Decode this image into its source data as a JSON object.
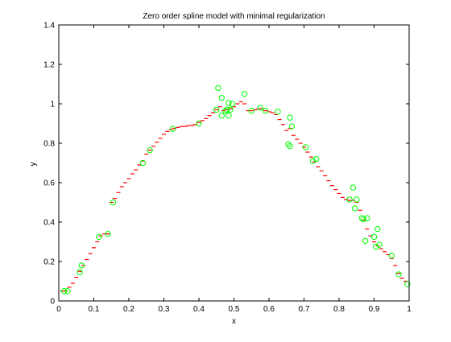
{
  "chart_data": {
    "type": "scatter",
    "title": "Zero order spline model with minimal regularization",
    "xlabel": "x",
    "ylabel": "y",
    "xlim": [
      0,
      1
    ],
    "ylim": [
      0,
      1.4
    ],
    "xticks": [
      "0",
      "0.1",
      "0.2",
      "0.3",
      "0.4",
      "0.5",
      "0.6",
      "0.7",
      "0.8",
      "0.9",
      "1"
    ],
    "yticks": [
      "0",
      "0.2",
      "0.4",
      "0.6",
      "0.8",
      "1",
      "1.2",
      "1.4"
    ],
    "grid": false,
    "legend": "none",
    "series": [
      {
        "kind": "points",
        "marker": "open-circle",
        "color": "#00ff00",
        "points": [
          [
            0.015,
            0.05
          ],
          [
            0.025,
            0.05
          ],
          [
            0.06,
            0.145
          ],
          [
            0.065,
            0.18
          ],
          [
            0.115,
            0.325
          ],
          [
            0.14,
            0.34
          ],
          [
            0.155,
            0.5
          ],
          [
            0.24,
            0.7
          ],
          [
            0.26,
            0.765
          ],
          [
            0.325,
            0.873
          ],
          [
            0.4,
            0.9
          ],
          [
            0.45,
            0.97
          ],
          [
            0.455,
            1.08
          ],
          [
            0.465,
            1.03
          ],
          [
            0.465,
            0.94
          ],
          [
            0.475,
            0.965
          ],
          [
            0.48,
            0.97
          ],
          [
            0.485,
            0.94
          ],
          [
            0.485,
            1.005
          ],
          [
            0.49,
            0.97
          ],
          [
            0.495,
            1.0
          ],
          [
            0.53,
            1.05
          ],
          [
            0.55,
            0.965
          ],
          [
            0.575,
            0.98
          ],
          [
            0.59,
            0.965
          ],
          [
            0.625,
            0.96
          ],
          [
            0.655,
            0.795
          ],
          [
            0.66,
            0.785
          ],
          [
            0.66,
            0.93
          ],
          [
            0.665,
            0.885
          ],
          [
            0.705,
            0.78
          ],
          [
            0.725,
            0.71
          ],
          [
            0.735,
            0.72
          ],
          [
            0.83,
            0.515
          ],
          [
            0.84,
            0.575
          ],
          [
            0.845,
            0.47
          ],
          [
            0.85,
            0.515
          ],
          [
            0.865,
            0.42
          ],
          [
            0.87,
            0.415
          ],
          [
            0.875,
            0.305
          ],
          [
            0.88,
            0.42
          ],
          [
            0.9,
            0.325
          ],
          [
            0.905,
            0.275
          ],
          [
            0.91,
            0.365
          ],
          [
            0.915,
            0.285
          ],
          [
            0.95,
            0.23
          ],
          [
            0.97,
            0.135
          ],
          [
            0.995,
            0.085
          ]
        ]
      },
      {
        "kind": "steps",
        "marker": "dash",
        "color": "#ff0000",
        "points": [
          [
            0.01,
            0.05
          ],
          [
            0.02,
            0.05
          ],
          [
            0.03,
            0.07
          ],
          [
            0.04,
            0.09
          ],
          [
            0.05,
            0.12
          ],
          [
            0.06,
            0.15
          ],
          [
            0.07,
            0.18
          ],
          [
            0.08,
            0.21
          ],
          [
            0.09,
            0.24
          ],
          [
            0.1,
            0.27
          ],
          [
            0.11,
            0.3
          ],
          [
            0.12,
            0.33
          ],
          [
            0.13,
            0.34
          ],
          [
            0.14,
            0.34
          ],
          [
            0.15,
            0.5
          ],
          [
            0.16,
            0.52
          ],
          [
            0.17,
            0.55
          ],
          [
            0.18,
            0.58
          ],
          [
            0.19,
            0.6
          ],
          [
            0.2,
            0.62
          ],
          [
            0.21,
            0.645
          ],
          [
            0.22,
            0.665
          ],
          [
            0.23,
            0.69
          ],
          [
            0.24,
            0.71
          ],
          [
            0.25,
            0.745
          ],
          [
            0.26,
            0.765
          ],
          [
            0.27,
            0.785
          ],
          [
            0.28,
            0.805
          ],
          [
            0.29,
            0.825
          ],
          [
            0.3,
            0.845
          ],
          [
            0.31,
            0.86
          ],
          [
            0.32,
            0.87
          ],
          [
            0.33,
            0.875
          ],
          [
            0.34,
            0.88
          ],
          [
            0.35,
            0.885
          ],
          [
            0.36,
            0.885
          ],
          [
            0.37,
            0.89
          ],
          [
            0.38,
            0.89
          ],
          [
            0.39,
            0.895
          ],
          [
            0.4,
            0.905
          ],
          [
            0.41,
            0.915
          ],
          [
            0.42,
            0.925
          ],
          [
            0.43,
            0.94
          ],
          [
            0.44,
            0.955
          ],
          [
            0.45,
            0.97
          ],
          [
            0.46,
            0.985
          ],
          [
            0.47,
            0.965
          ],
          [
            0.48,
            0.97
          ],
          [
            0.49,
            0.975
          ],
          [
            0.5,
            0.985
          ],
          [
            0.51,
            1.0
          ],
          [
            0.52,
            1.01
          ],
          [
            0.53,
            1.0
          ],
          [
            0.54,
            0.965
          ],
          [
            0.55,
            0.965
          ],
          [
            0.56,
            0.97
          ],
          [
            0.57,
            0.975
          ],
          [
            0.58,
            0.975
          ],
          [
            0.59,
            0.965
          ],
          [
            0.6,
            0.96
          ],
          [
            0.61,
            0.955
          ],
          [
            0.62,
            0.945
          ],
          [
            0.63,
            0.92
          ],
          [
            0.64,
            0.895
          ],
          [
            0.65,
            0.865
          ],
          [
            0.66,
            0.875
          ],
          [
            0.67,
            0.84
          ],
          [
            0.68,
            0.82
          ],
          [
            0.69,
            0.8
          ],
          [
            0.7,
            0.78
          ],
          [
            0.71,
            0.755
          ],
          [
            0.72,
            0.73
          ],
          [
            0.73,
            0.705
          ],
          [
            0.74,
            0.68
          ],
          [
            0.75,
            0.66
          ],
          [
            0.76,
            0.635
          ],
          [
            0.77,
            0.61
          ],
          [
            0.78,
            0.585
          ],
          [
            0.79,
            0.565
          ],
          [
            0.8,
            0.545
          ],
          [
            0.81,
            0.525
          ],
          [
            0.82,
            0.515
          ],
          [
            0.83,
            0.51
          ],
          [
            0.84,
            0.51
          ],
          [
            0.85,
            0.5
          ],
          [
            0.86,
            0.46
          ],
          [
            0.87,
            0.41
          ],
          [
            0.88,
            0.365
          ],
          [
            0.89,
            0.33
          ],
          [
            0.9,
            0.3
          ],
          [
            0.91,
            0.28
          ],
          [
            0.92,
            0.265
          ],
          [
            0.93,
            0.25
          ],
          [
            0.94,
            0.235
          ],
          [
            0.95,
            0.215
          ],
          [
            0.96,
            0.18
          ],
          [
            0.97,
            0.14
          ],
          [
            0.98,
            0.115
          ],
          [
            0.99,
            0.1
          ]
        ]
      }
    ]
  }
}
